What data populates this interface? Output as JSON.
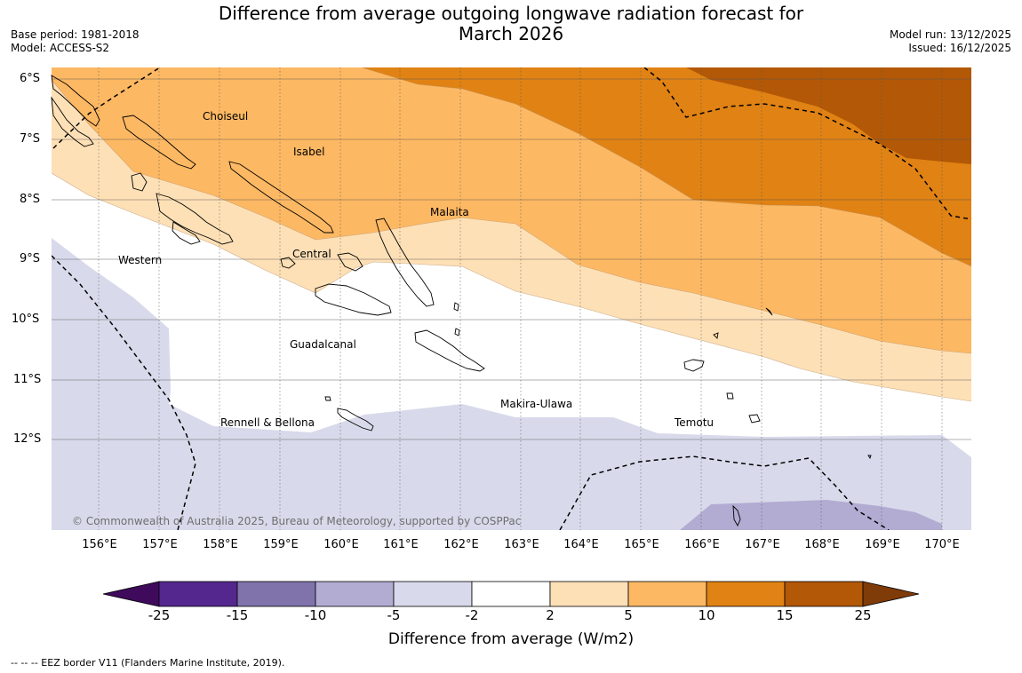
{
  "header": {
    "title_line1": "Difference from average outgoing longwave radiation forecast for",
    "title_line2": "March 2026",
    "base_period": "Base period: 1981-2018",
    "model": "Model: ACCESS-S2",
    "model_run": "Model run: 13/12/2025",
    "issued": "Issued: 16/12/2025"
  },
  "map": {
    "lat_labels": [
      "6°S",
      "7°S",
      "8°S",
      "9°S",
      "10°S",
      "11°S",
      "12°S"
    ],
    "lon_labels": [
      "156°E",
      "157°E",
      "158°E",
      "159°E",
      "160°E",
      "161°E",
      "162°E",
      "163°E",
      "164°E",
      "165°E",
      "166°E",
      "167°E",
      "168°E",
      "169°E",
      "170°E"
    ],
    "places": {
      "choiseul": "Choiseul",
      "isabel": "Isabel",
      "malaita": "Malaita",
      "western": "Western",
      "central": "Central",
      "guadalcanal": "Guadalcanal",
      "makira": "Makira-Ulawa",
      "rennell": "Rennell & Bellona",
      "temotu": "Temotu"
    },
    "copyright": "© Commonwealth of Australia 2025, Bureau of Meteorology, supported by COSPPac"
  },
  "colorbar": {
    "levels": [
      "-25",
      "-15",
      "-10",
      "-5",
      "-2",
      "2",
      "5",
      "10",
      "15",
      "25"
    ],
    "colors": [
      "#3f0a5c",
      "#54278f",
      "#8073ac",
      "#b2abd2",
      "#d8daeb",
      "#ffffff",
      "#fee0b6",
      "#fdb863",
      "#e08214",
      "#b35806",
      "#7f3b08"
    ],
    "title": "Difference from average (W/m2)"
  },
  "footnote": "--  --  -- EEZ border V11 (Flanders Marine Institute, 2019)."
}
